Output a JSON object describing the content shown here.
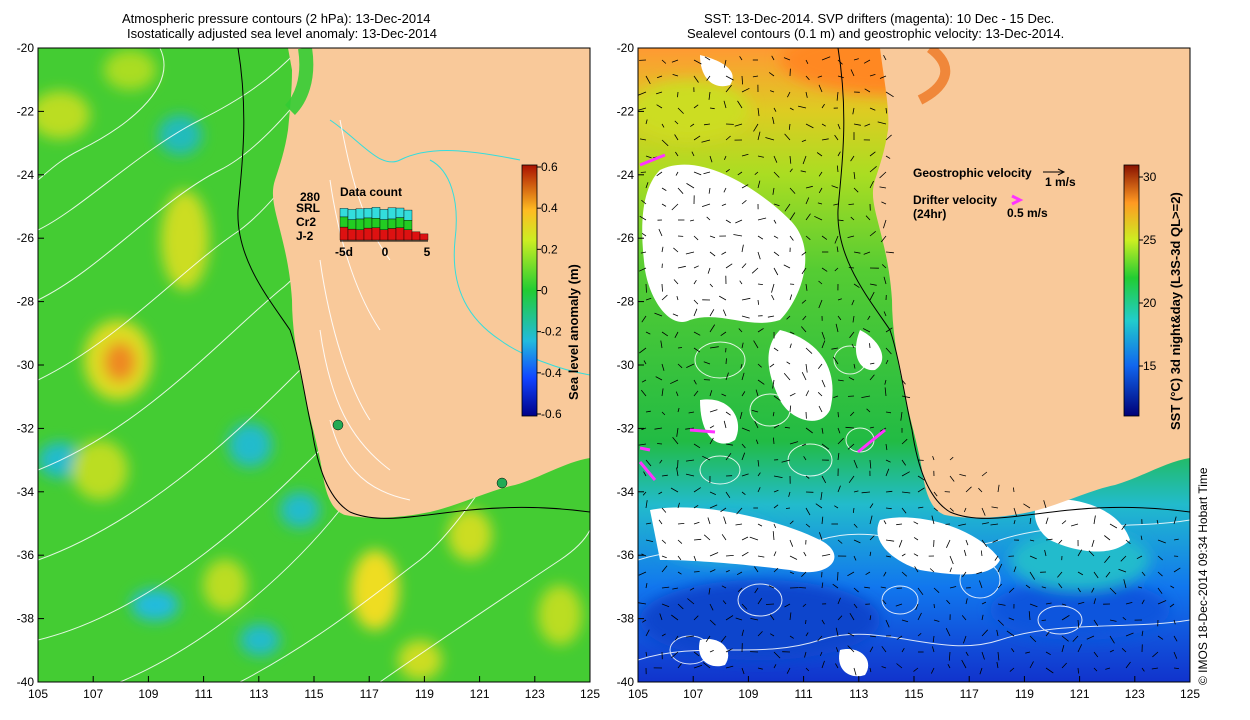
{
  "left_panel": {
    "title_line1": "Atmospheric pressure contours (2 hPa): 13-Dec-2014",
    "title_line2": "Isostatically adjusted sea level anomaly: 13-Dec-2014",
    "x_ticks": [
      "105",
      "107",
      "109",
      "111",
      "113",
      "115",
      "117",
      "119",
      "121",
      "123",
      "125"
    ],
    "y_ticks": [
      "-20",
      "-22",
      "-24",
      "-26",
      "-28",
      "-30",
      "-32",
      "-34",
      "-36",
      "-38",
      "-40"
    ],
    "colorbar_ticks": [
      "0.6",
      "0.4",
      "0.2",
      "0",
      "-0.2",
      "-0.4",
      "-0.6"
    ],
    "colorbar_label": "Sea level anomaly (m)",
    "inset": {
      "max_count": "280",
      "title": "Data count",
      "legend": [
        {
          "name": "SRL",
          "color": "#33dddd"
        },
        {
          "name": "Cr2",
          "color": "#22cc22"
        },
        {
          "name": "J-2",
          "color": "#dd1111"
        }
      ],
      "x_ticks": [
        "-5d",
        "0",
        "5"
      ],
      "bars": [
        {
          "j2": 0.38,
          "cr2": 0.3,
          "srl": 0.25
        },
        {
          "j2": 0.32,
          "cr2": 0.28,
          "srl": 0.3
        },
        {
          "j2": 0.3,
          "cr2": 0.32,
          "srl": 0.3
        },
        {
          "j2": 0.35,
          "cr2": 0.3,
          "srl": 0.28
        },
        {
          "j2": 0.36,
          "cr2": 0.28,
          "srl": 0.32
        },
        {
          "j2": 0.3,
          "cr2": 0.3,
          "srl": 0.3
        },
        {
          "j2": 0.34,
          "cr2": 0.28,
          "srl": 0.33
        },
        {
          "j2": 0.36,
          "cr2": 0.3,
          "srl": 0.28
        },
        {
          "j2": 0.3,
          "cr2": 0.28,
          "srl": 0.3
        },
        {
          "j2": 0.24,
          "cr2": 0.0,
          "srl": 0.0
        },
        {
          "j2": 0.18,
          "cr2": 0.0,
          "srl": 0.0
        }
      ]
    }
  },
  "right_panel": {
    "title_line1": "SST: 13-Dec-2014. SVP drifters (magenta): 10 Dec - 15 Dec.",
    "title_line2": "Sealevel contours (0.1 m) and geostrophic velocity: 13-Dec-2014.",
    "x_ticks": [
      "105",
      "107",
      "109",
      "111",
      "113",
      "115",
      "117",
      "119",
      "121",
      "123",
      "125"
    ],
    "y_ticks": [
      "-20",
      "-22",
      "-24",
      "-26",
      "-28",
      "-30",
      "-32",
      "-34",
      "-36",
      "-38",
      "-40"
    ],
    "colorbar_ticks": [
      "30",
      "25",
      "20",
      "15"
    ],
    "colorbar_label": "SST (°C) 3d night&day (L3S-3d QL>=2)",
    "legend_geo": "Geostrophic velocity",
    "legend_geo_scale": "1 m/s",
    "legend_drifter": "Drifter velocity",
    "legend_drifter_sub": "(24hr)",
    "legend_drifter_scale": "0.5 m/s"
  },
  "credit": "© IMOS 18-Dec-2014 09:34 Hobart Time",
  "colors": {
    "land": "#f9c99a",
    "ocean_green": "#33cc33",
    "sst_blue": "#1a66dd",
    "drifter": "#ff33ff"
  }
}
